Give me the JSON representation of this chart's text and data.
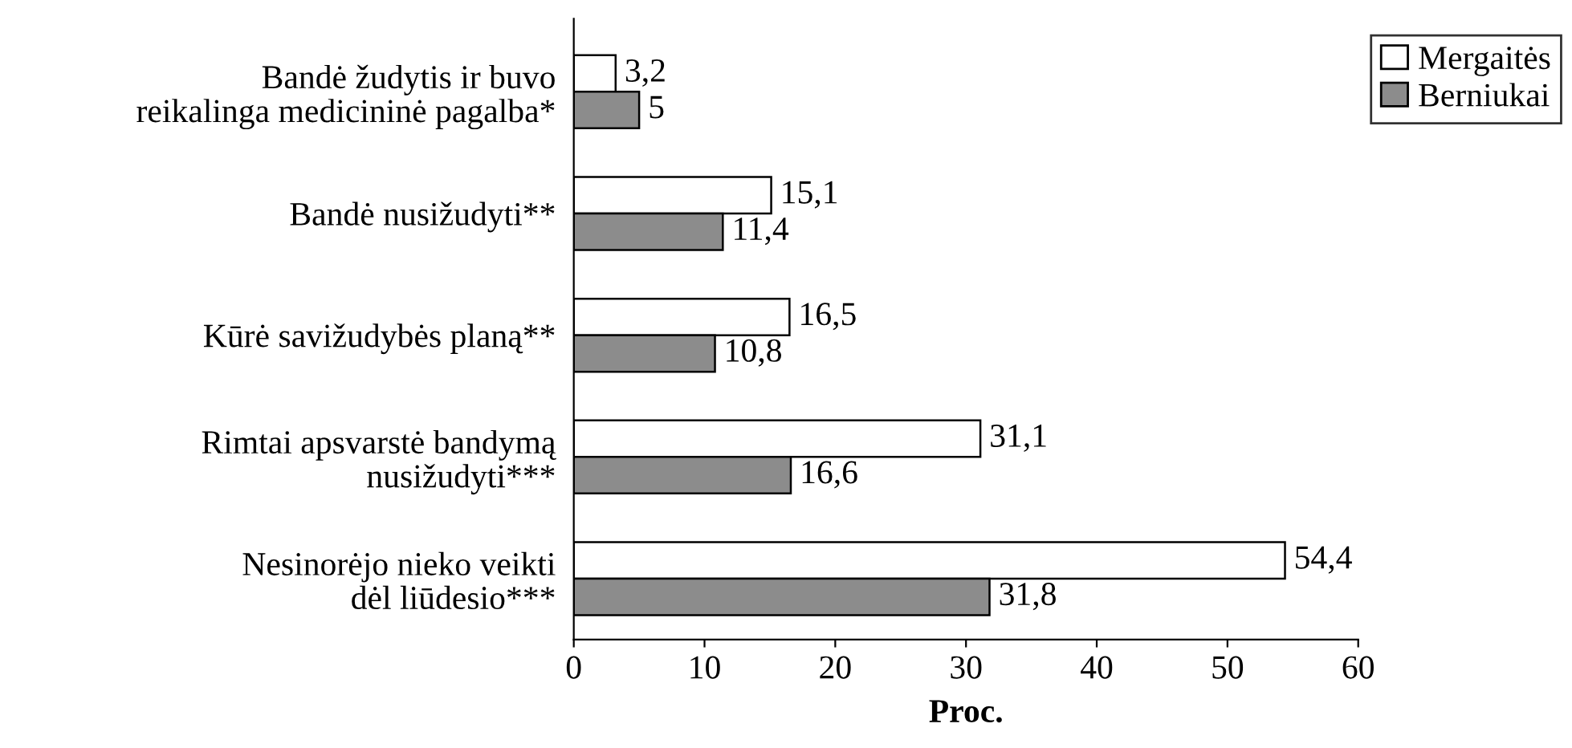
{
  "chart_data": {
    "type": "bar",
    "orientation": "horizontal",
    "xlabel": "Proc.",
    "categories": [
      "Bandė žudytis ir buvo\nreikalinga medicininė pagalba*",
      "Bandė nusižudyti**",
      "Kūrė savižudybės planą**",
      "Rimtai apsvarstė bandymą\nnusižudyti***",
      "Nesinorėjo nieko veikti\ndėl liūdesio***"
    ],
    "series": [
      {
        "name": "Mergaitės",
        "color": "#ffffff",
        "values": [
          3.2,
          15.1,
          16.5,
          31.1,
          54.4
        ],
        "value_labels": [
          "3,2",
          "15,1",
          "16,5",
          "31,1",
          "54,4"
        ]
      },
      {
        "name": "Berniukai",
        "color": "#8c8c8c",
        "values": [
          5,
          11.4,
          10.8,
          16.6,
          31.8
        ],
        "value_labels": [
          "5",
          "11,4",
          "10,8",
          "16,6",
          "31,8"
        ]
      }
    ],
    "xlim": [
      0,
      60
    ],
    "xticks": [
      0,
      10,
      20,
      30,
      40,
      50,
      60
    ],
    "grid": false,
    "legend": "top right"
  }
}
